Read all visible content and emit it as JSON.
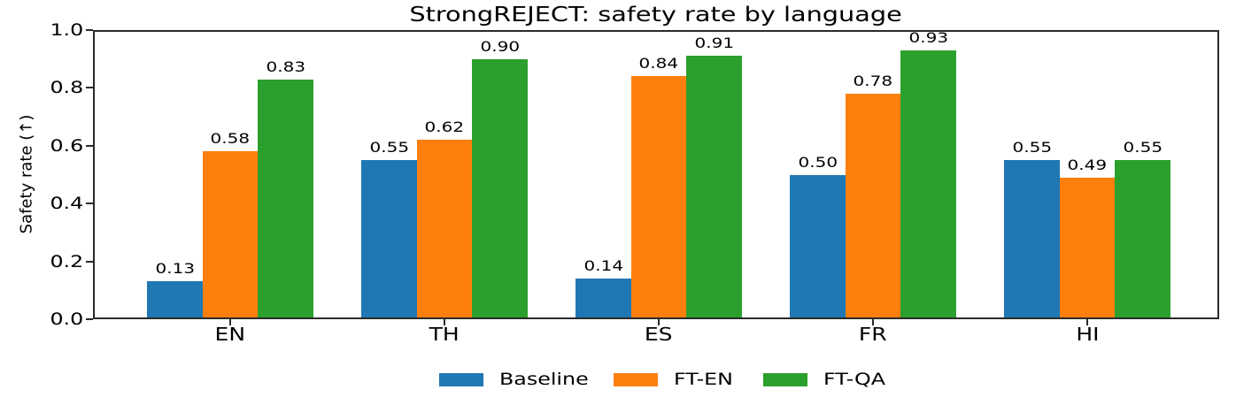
{
  "chart_data": {
    "type": "bar",
    "title": "StrongREJECT: safety rate by language",
    "xlabel": "",
    "ylabel": "Safety rate (↑)",
    "categories": [
      "EN",
      "TH",
      "ES",
      "FR",
      "HI"
    ],
    "series": [
      {
        "name": "Baseline",
        "color": "#1f77b4",
        "values": [
          0.13,
          0.55,
          0.14,
          0.5,
          0.55
        ]
      },
      {
        "name": "FT-EN",
        "color": "#ff7f0e",
        "values": [
          0.58,
          0.62,
          0.84,
          0.78,
          0.49
        ]
      },
      {
        "name": "FT-QA",
        "color": "#2ca02c",
        "values": [
          0.83,
          0.9,
          0.91,
          0.93,
          0.55
        ]
      }
    ],
    "bar_value_labels": [
      [
        "0.13",
        "0.55",
        "0.14",
        "0.50",
        "0.55"
      ],
      [
        "0.58",
        "0.62",
        "0.84",
        "0.78",
        "0.49"
      ],
      [
        "0.83",
        "0.90",
        "0.91",
        "0.93",
        "0.55"
      ]
    ],
    "ylim": [
      0.0,
      1.0
    ],
    "yticks": [
      "0.0",
      "0.2",
      "0.4",
      "0.6",
      "0.8",
      "1.0"
    ],
    "grid": false,
    "legend": {
      "position": "bottom-center",
      "entries": [
        "Baseline",
        "FT-EN",
        "FT-QA"
      ]
    },
    "axis_color": "#2b2b2b",
    "text_color": "#000000",
    "background_color": "#ffffff"
  }
}
